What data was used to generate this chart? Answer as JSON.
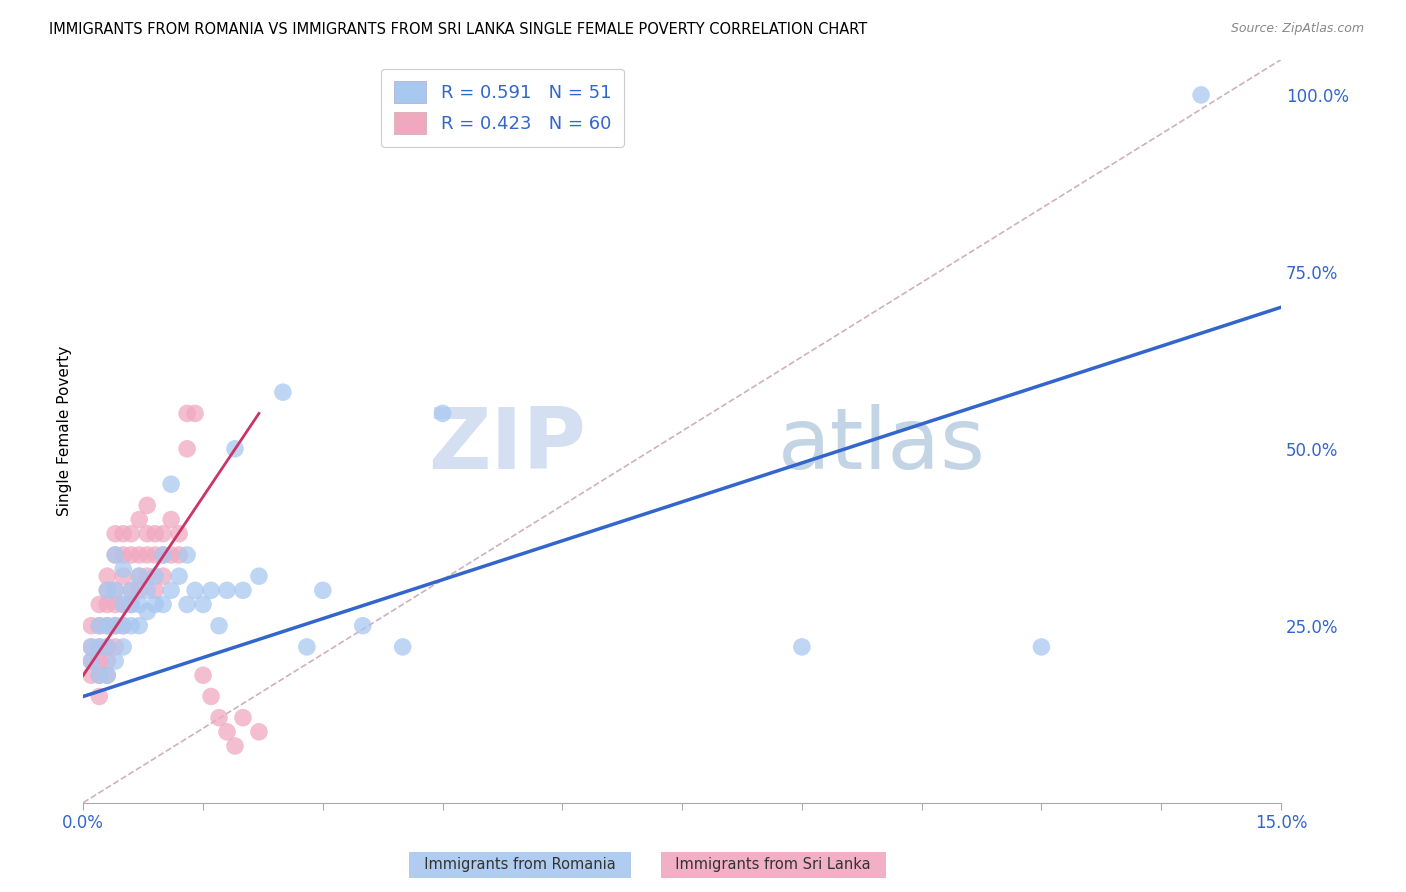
{
  "title": "IMMIGRANTS FROM ROMANIA VS IMMIGRANTS FROM SRI LANKA SINGLE FEMALE POVERTY CORRELATION CHART",
  "source": "Source: ZipAtlas.com",
  "ylabel": "Single Female Poverty",
  "ylabel_right_ticks": [
    "100.0%",
    "75.0%",
    "50.0%",
    "25.0%"
  ],
  "ylabel_right_vals": [
    1.0,
    0.75,
    0.5,
    0.25
  ],
  "xlim": [
    0.0,
    0.15
  ],
  "ylim": [
    0.0,
    1.05
  ],
  "romania_R": 0.591,
  "romania_N": 51,
  "srilanka_R": 0.423,
  "srilanka_N": 60,
  "romania_color": "#a8c8f0",
  "srilanka_color": "#f0a8c0",
  "romania_line_color": "#3366cc",
  "srilanka_line_color": "#cc3366",
  "diagonal_color": "#d0b0c0",
  "watermark_zip": "ZIP",
  "watermark_atlas": "atlas",
  "romania_scatter_x": [
    0.001,
    0.001,
    0.002,
    0.002,
    0.002,
    0.003,
    0.003,
    0.003,
    0.003,
    0.004,
    0.004,
    0.004,
    0.004,
    0.005,
    0.005,
    0.005,
    0.005,
    0.006,
    0.006,
    0.006,
    0.007,
    0.007,
    0.007,
    0.008,
    0.008,
    0.009,
    0.009,
    0.01,
    0.01,
    0.011,
    0.011,
    0.012,
    0.013,
    0.013,
    0.014,
    0.015,
    0.016,
    0.017,
    0.018,
    0.019,
    0.02,
    0.022,
    0.025,
    0.028,
    0.03,
    0.035,
    0.04,
    0.045,
    0.09,
    0.12,
    0.14
  ],
  "romania_scatter_y": [
    0.2,
    0.22,
    0.18,
    0.22,
    0.25,
    0.18,
    0.22,
    0.25,
    0.3,
    0.2,
    0.25,
    0.3,
    0.35,
    0.22,
    0.25,
    0.28,
    0.33,
    0.25,
    0.28,
    0.3,
    0.25,
    0.28,
    0.32,
    0.27,
    0.3,
    0.28,
    0.32,
    0.28,
    0.35,
    0.3,
    0.45,
    0.32,
    0.28,
    0.35,
    0.3,
    0.28,
    0.3,
    0.25,
    0.3,
    0.5,
    0.3,
    0.32,
    0.58,
    0.22,
    0.3,
    0.25,
    0.22,
    0.55,
    0.22,
    0.22,
    1.0
  ],
  "srilanka_scatter_x": [
    0.001,
    0.001,
    0.001,
    0.001,
    0.002,
    0.002,
    0.002,
    0.002,
    0.002,
    0.002,
    0.003,
    0.003,
    0.003,
    0.003,
    0.003,
    0.003,
    0.003,
    0.004,
    0.004,
    0.004,
    0.004,
    0.004,
    0.004,
    0.005,
    0.005,
    0.005,
    0.005,
    0.005,
    0.006,
    0.006,
    0.006,
    0.006,
    0.007,
    0.007,
    0.007,
    0.007,
    0.008,
    0.008,
    0.008,
    0.008,
    0.009,
    0.009,
    0.009,
    0.01,
    0.01,
    0.01,
    0.011,
    0.011,
    0.012,
    0.012,
    0.013,
    0.013,
    0.014,
    0.015,
    0.016,
    0.017,
    0.018,
    0.019,
    0.02,
    0.022
  ],
  "srilanka_scatter_y": [
    0.18,
    0.2,
    0.22,
    0.25,
    0.18,
    0.2,
    0.22,
    0.25,
    0.28,
    0.15,
    0.2,
    0.22,
    0.25,
    0.28,
    0.3,
    0.32,
    0.18,
    0.22,
    0.25,
    0.28,
    0.3,
    0.35,
    0.38,
    0.25,
    0.28,
    0.32,
    0.35,
    0.38,
    0.28,
    0.3,
    0.35,
    0.38,
    0.3,
    0.32,
    0.35,
    0.4,
    0.32,
    0.35,
    0.38,
    0.42,
    0.3,
    0.35,
    0.38,
    0.32,
    0.35,
    0.38,
    0.35,
    0.4,
    0.35,
    0.38,
    0.55,
    0.5,
    0.55,
    0.18,
    0.15,
    0.12,
    0.1,
    0.08,
    0.12,
    0.1
  ],
  "ro_line_x0": 0.0,
  "ro_line_y0": 0.15,
  "ro_line_x1": 0.15,
  "ro_line_y1": 0.7,
  "sl_line_x0": 0.0,
  "sl_line_y0": 0.18,
  "sl_line_x1": 0.022,
  "sl_line_y1": 0.55
}
